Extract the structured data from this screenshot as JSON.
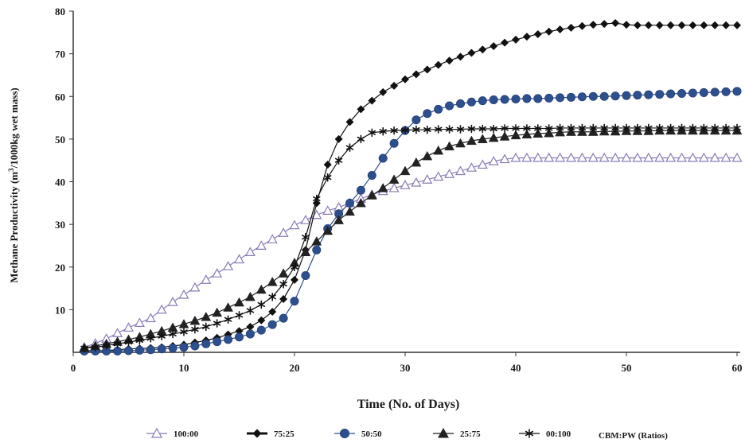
{
  "chart_data": {
    "type": "line",
    "title": "",
    "xlabel": "Time (No. of Days)",
    "ylabel_main": "Methane Productivity (m",
    "ylabel_sup": "3",
    "ylabel_rest": "/1000kg wet mass)",
    "xlim": [
      0,
      60
    ],
    "ylim": [
      0,
      80
    ],
    "xticks": [
      0,
      10,
      20,
      30,
      40,
      50,
      60
    ],
    "yticks": [
      10,
      20,
      30,
      40,
      50,
      60,
      70,
      80
    ],
    "grid": false,
    "legend_position": "bottom",
    "legend_note": "CBM:PW (Ratios)",
    "x": [
      1,
      2,
      3,
      4,
      5,
      6,
      7,
      8,
      9,
      10,
      11,
      12,
      13,
      14,
      15,
      16,
      17,
      18,
      19,
      20,
      21,
      22,
      23,
      24,
      25,
      26,
      27,
      28,
      29,
      30,
      31,
      32,
      33,
      34,
      35,
      36,
      37,
      38,
      39,
      40,
      41,
      42,
      43,
      44,
      45,
      46,
      47,
      48,
      49,
      50,
      51,
      52,
      53,
      54,
      55,
      56,
      57,
      58,
      59,
      60
    ],
    "series": [
      {
        "name": "100:00",
        "marker": "open-triangle",
        "color": "#8a7bb5",
        "values": [
          1.2,
          2.1,
          3.2,
          4.5,
          5.8,
          6.9,
          8.0,
          10.0,
          11.8,
          13.5,
          15.2,
          17.0,
          18.5,
          20.2,
          21.8,
          23.5,
          25.0,
          26.5,
          28.0,
          29.8,
          31.0,
          32.2,
          33.2,
          34.0,
          35.0,
          36.0,
          37.0,
          37.8,
          38.5,
          39.2,
          39.8,
          40.5,
          41.2,
          41.8,
          42.5,
          43.3,
          44.0,
          44.8,
          45.3,
          45.6,
          45.6,
          45.6,
          45.6,
          45.6,
          45.6,
          45.6,
          45.6,
          45.6,
          45.6,
          45.6,
          45.6,
          45.6,
          45.6,
          45.6,
          45.6,
          45.6,
          45.6,
          45.6,
          45.6,
          45.6
        ]
      },
      {
        "name": "75:25",
        "marker": "diamond",
        "color": "#111111",
        "values": [
          0.4,
          0.4,
          0.4,
          0.6,
          0.8,
          0.9,
          1.0,
          1.2,
          1.5,
          1.8,
          2.3,
          2.8,
          3.4,
          4.2,
          5.0,
          6.0,
          7.5,
          9.5,
          12.5,
          17.0,
          24.0,
          35.0,
          44.0,
          50.0,
          54.0,
          57.0,
          59.0,
          61.0,
          62.5,
          64.0,
          65.2,
          66.3,
          67.4,
          68.4,
          69.3,
          70.2,
          71.0,
          71.8,
          72.6,
          73.3,
          74.0,
          74.6,
          75.2,
          75.7,
          76.1,
          76.5,
          76.8,
          77.0,
          77.2,
          76.8,
          76.7,
          76.7,
          76.7,
          76.7,
          76.7,
          76.7,
          76.7,
          76.7,
          76.7,
          76.7
        ]
      },
      {
        "name": "50:50",
        "marker": "circle",
        "color": "#2e4f8e",
        "values": [
          0.3,
          0.3,
          0.3,
          0.3,
          0.4,
          0.5,
          0.6,
          0.8,
          1.0,
          1.2,
          1.5,
          2.0,
          2.5,
          3.0,
          3.6,
          4.3,
          5.2,
          6.5,
          8.0,
          12.0,
          18.0,
          24.0,
          29.0,
          32.5,
          35.0,
          38.0,
          41.5,
          45.5,
          49.0,
          52.0,
          54.5,
          56.0,
          57.0,
          57.8,
          58.3,
          58.7,
          59.0,
          59.2,
          59.3,
          59.4,
          59.5,
          59.5,
          59.6,
          59.7,
          59.8,
          59.9,
          60.0,
          60.0,
          60.1,
          60.2,
          60.3,
          60.4,
          60.5,
          60.6,
          60.7,
          60.8,
          60.9,
          61.0,
          61.1,
          61.2
        ]
      },
      {
        "name": "25:75",
        "marker": "triangle",
        "color": "#222222",
        "values": [
          1.0,
          1.5,
          2.0,
          2.5,
          3.0,
          3.6,
          4.3,
          5.0,
          5.8,
          6.6,
          7.4,
          8.3,
          9.3,
          10.5,
          11.7,
          13.0,
          14.7,
          16.5,
          18.5,
          21.0,
          23.5,
          26.0,
          28.5,
          31.0,
          33.0,
          35.0,
          36.8,
          38.5,
          40.5,
          42.5,
          44.5,
          46.0,
          47.3,
          48.3,
          49.0,
          49.6,
          50.0,
          50.3,
          50.6,
          50.9,
          51.1,
          51.3,
          51.4,
          51.6,
          51.7,
          51.7,
          51.7,
          51.8,
          51.8,
          51.9,
          51.9,
          51.9,
          52.0,
          52.0,
          52.0,
          52.0,
          52.0,
          52.0,
          52.0,
          52.0
        ]
      },
      {
        "name": "00:100",
        "marker": "asterisk",
        "color": "#111111",
        "values": [
          1.0,
          1.2,
          1.6,
          2.0,
          2.4,
          2.8,
          3.3,
          3.8,
          4.3,
          4.8,
          5.4,
          6.0,
          6.8,
          7.7,
          8.7,
          9.8,
          11.2,
          13.0,
          16.0,
          20.0,
          27.0,
          36.0,
          41.0,
          45.0,
          48.0,
          50.0,
          51.5,
          51.8,
          52.0,
          52.1,
          52.2,
          52.2,
          52.3,
          52.3,
          52.3,
          52.4,
          52.4,
          52.4,
          52.5,
          52.5,
          52.5,
          52.5,
          52.5,
          52.6,
          52.6,
          52.6,
          52.6,
          52.6,
          52.6,
          52.6,
          52.6,
          52.6,
          52.6,
          52.6,
          52.6,
          52.6,
          52.6,
          52.6,
          52.6,
          52.6
        ]
      }
    ]
  }
}
